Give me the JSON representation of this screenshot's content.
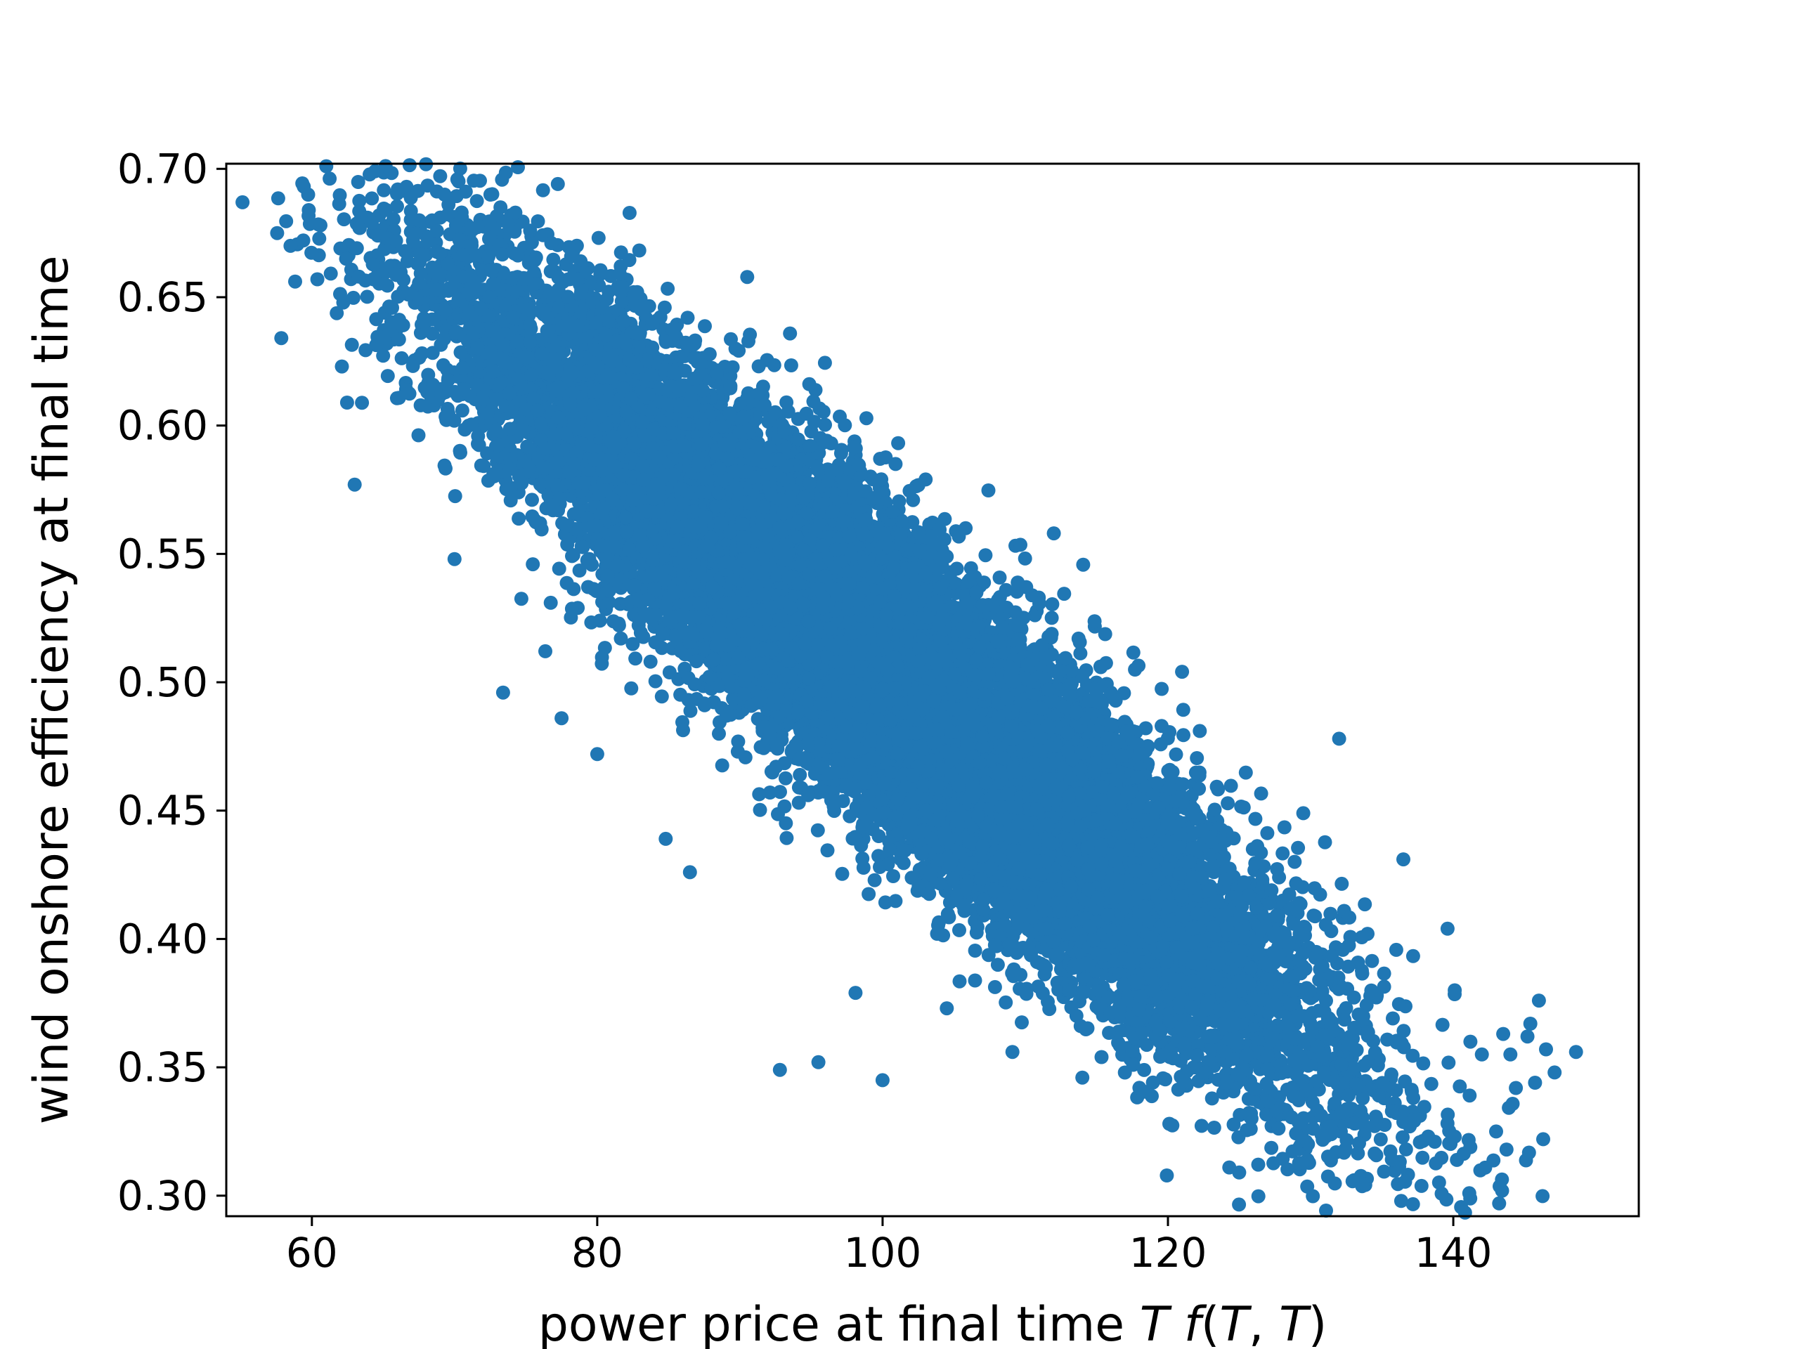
{
  "chart_data": {
    "type": "scatter",
    "title": "",
    "xlabel": "power price at final time T f(T, T)",
    "xlabel_parts": {
      "prefix": "power price at final time ",
      "T": "T",
      "f": "f",
      "open": "(",
      "T1": "T",
      "comma": ", ",
      "T2": "T",
      "close": ")"
    },
    "ylabel": "wind onshore efficiency at final time",
    "xlim": [
      54,
      153
    ],
    "ylim": [
      0.292,
      0.702
    ],
    "xticks": [
      60,
      80,
      100,
      120,
      140
    ],
    "xtick_labels": [
      "60",
      "80",
      "100",
      "120",
      "140"
    ],
    "yticks": [
      0.3,
      0.35,
      0.4,
      0.45,
      0.5,
      0.55,
      0.6,
      0.65,
      0.7
    ],
    "ytick_labels": [
      "0.30",
      "0.35",
      "0.40",
      "0.45",
      "0.50",
      "0.55",
      "0.60",
      "0.65",
      "0.70"
    ],
    "grid": false,
    "series_color": "#2077b4",
    "distribution": {
      "n_points": 20000,
      "x_mean": 100,
      "x_std": 14,
      "y_intercept": 0.974,
      "y_slope": -0.0047,
      "y_noise_std": 0.028
    },
    "points": [
      [
        58.5,
        0.67
      ],
      [
        60.6,
        0.678
      ],
      [
        62.0,
        0.669
      ],
      [
        62.4,
        0.665
      ],
      [
        63.3,
        0.658
      ],
      [
        63.9,
        0.681
      ],
      [
        64.2,
        0.679
      ],
      [
        64.3,
        0.657
      ],
      [
        65.2,
        0.684
      ],
      [
        65.3,
        0.673
      ],
      [
        65.9,
        0.672
      ],
      [
        66.7,
        0.664
      ],
      [
        69.0,
        0.667
      ],
      [
        70.1,
        0.678
      ],
      [
        70.6,
        0.658
      ],
      [
        74.2,
        0.667
      ],
      [
        78.6,
        0.657
      ],
      [
        82.8,
        0.652
      ],
      [
        62.1,
        0.623
      ],
      [
        63.0,
        0.577
      ],
      [
        70.0,
        0.548
      ],
      [
        73.4,
        0.496
      ],
      [
        77.5,
        0.486
      ],
      [
        80.0,
        0.472
      ],
      [
        84.8,
        0.439
      ],
      [
        86.5,
        0.426
      ],
      [
        98.1,
        0.379
      ],
      [
        104.5,
        0.373
      ],
      [
        109.1,
        0.356
      ],
      [
        112.0,
        0.558
      ],
      [
        132.0,
        0.478
      ],
      [
        136.5,
        0.431
      ],
      [
        139.6,
        0.404
      ],
      [
        140.1,
        0.38
      ],
      [
        141.2,
        0.36
      ],
      [
        142.0,
        0.355
      ],
      [
        143.5,
        0.363
      ],
      [
        144.0,
        0.355
      ],
      [
        145.2,
        0.362
      ],
      [
        145.4,
        0.367
      ],
      [
        146.0,
        0.376
      ],
      [
        146.5,
        0.357
      ],
      [
        147.1,
        0.348
      ],
      [
        148.6,
        0.356
      ],
      [
        146.3,
        0.322
      ],
      [
        143.0,
        0.325
      ],
      [
        138.7,
        0.321
      ],
      [
        124.3,
        0.311
      ],
      [
        120.1,
        0.328
      ],
      [
        125.8,
        0.326
      ],
      [
        127.6,
        0.333
      ],
      [
        133.5,
        0.333
      ],
      [
        131.4,
        0.327
      ],
      [
        100.0,
        0.345
      ],
      [
        92.8,
        0.349
      ],
      [
        95.5,
        0.352
      ],
      [
        114.0,
        0.346
      ],
      [
        118.0,
        0.342
      ]
    ]
  }
}
